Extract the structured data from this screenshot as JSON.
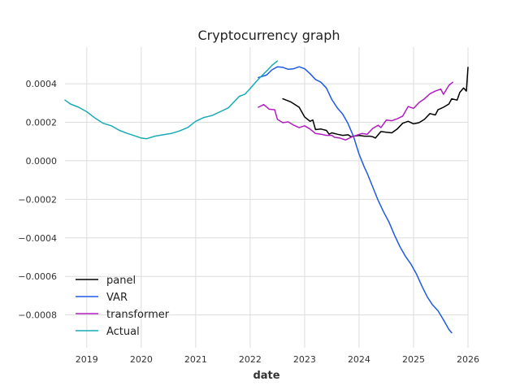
{
  "chart_data": {
    "type": "line",
    "title": "Cryptocurrency graph",
    "xlabel": "date",
    "ylabel": "",
    "x_ticks": [
      "2019",
      "2020",
      "2021",
      "2022",
      "2023",
      "2024",
      "2025",
      "2026"
    ],
    "y_ticks": [
      "−0.0008",
      "−0.0006",
      "−0.0004",
      "−0.0002",
      "0.0000",
      "0.0002",
      "0.0004"
    ],
    "xlim": [
      2018.6,
      2026.0
    ],
    "ylim": [
      -0.00097,
      0.00059
    ],
    "grid": true,
    "legend_position": "lower-left",
    "series": [
      {
        "name": "panel",
        "color": "#000000",
        "points": [
          [
            2022.6,
            0.000322
          ],
          [
            2022.75,
            0.000305
          ],
          [
            2022.9,
            0.000278
          ],
          [
            2023.0,
            0.000228
          ],
          [
            2023.1,
            0.000205
          ],
          [
            2023.15,
            0.000212
          ],
          [
            2023.2,
            0.000162
          ],
          [
            2023.3,
            0.000165
          ],
          [
            2023.4,
            0.000158
          ],
          [
            2023.45,
            0.000138
          ],
          [
            2023.5,
            0.000145
          ],
          [
            2023.6,
            0.000138
          ],
          [
            2023.7,
            0.000132
          ],
          [
            2023.8,
            0.000135
          ],
          [
            2023.85,
            0.000125
          ],
          [
            2023.9,
            0.000128
          ],
          [
            2024.0,
            0.000132
          ],
          [
            2024.1,
            0.000128
          ],
          [
            2024.2,
            0.000128
          ],
          [
            2024.25,
            0.000125
          ],
          [
            2024.3,
            0.000118
          ],
          [
            2024.4,
            0.000152
          ],
          [
            2024.5,
            0.000148
          ],
          [
            2024.6,
            0.000145
          ],
          [
            2024.7,
            0.000165
          ],
          [
            2024.8,
            0.000195
          ],
          [
            2024.9,
            0.000205
          ],
          [
            2025.0,
            0.000192
          ],
          [
            2025.1,
            0.000198
          ],
          [
            2025.2,
            0.000215
          ],
          [
            2025.3,
            0.000245
          ],
          [
            2025.4,
            0.000238
          ],
          [
            2025.45,
            0.000265
          ],
          [
            2025.55,
            0.000278
          ],
          [
            2025.65,
            0.000295
          ],
          [
            2025.7,
            0.000322
          ],
          [
            2025.8,
            0.000315
          ],
          [
            2025.85,
            0.000355
          ],
          [
            2025.92,
            0.000378
          ],
          [
            2025.97,
            0.000362
          ],
          [
            2026.0,
            0.000485
          ]
        ]
      },
      {
        "name": "VAR",
        "color": "#1f5ae6",
        "points": [
          [
            2022.15,
            0.000432
          ],
          [
            2022.3,
            0.000445
          ],
          [
            2022.4,
            0.000472
          ],
          [
            2022.5,
            0.000488
          ],
          [
            2022.6,
            0.000485
          ],
          [
            2022.7,
            0.000475
          ],
          [
            2022.8,
            0.000478
          ],
          [
            2022.9,
            0.000488
          ],
          [
            2023.0,
            0.000478
          ],
          [
            2023.1,
            0.000452
          ],
          [
            2023.2,
            0.000422
          ],
          [
            2023.3,
            0.000408
          ],
          [
            2023.4,
            0.000378
          ],
          [
            2023.5,
            0.000318
          ],
          [
            2023.6,
            0.000275
          ],
          [
            2023.7,
            0.000242
          ],
          [
            2023.8,
            0.000192
          ],
          [
            2023.9,
            0.000125
          ],
          [
            2024.0,
            3.5e-05
          ],
          [
            2024.1,
            -3.5e-05
          ],
          [
            2024.15,
            -6.5e-05
          ],
          [
            2024.25,
            -0.000135
          ],
          [
            2024.35,
            -0.000205
          ],
          [
            2024.45,
            -0.000265
          ],
          [
            2024.55,
            -0.000318
          ],
          [
            2024.65,
            -0.000385
          ],
          [
            2024.75,
            -0.000445
          ],
          [
            2024.85,
            -0.000495
          ],
          [
            2024.95,
            -0.000535
          ],
          [
            2025.05,
            -0.000585
          ],
          [
            2025.15,
            -0.000648
          ],
          [
            2025.25,
            -0.000705
          ],
          [
            2025.35,
            -0.000748
          ],
          [
            2025.45,
            -0.000778
          ],
          [
            2025.55,
            -0.000825
          ],
          [
            2025.65,
            -0.000875
          ],
          [
            2025.7,
            -0.000892
          ]
        ]
      },
      {
        "name": "transformer",
        "color": "#b01dbf",
        "points": [
          [
            2022.15,
            0.000278
          ],
          [
            2022.25,
            0.000292
          ],
          [
            2022.35,
            0.000268
          ],
          [
            2022.45,
            0.000265
          ],
          [
            2022.5,
            0.000215
          ],
          [
            2022.6,
            0.000198
          ],
          [
            2022.7,
            0.000202
          ],
          [
            2022.8,
            0.000185
          ],
          [
            2022.9,
            0.000172
          ],
          [
            2023.0,
            0.000182
          ],
          [
            2023.1,
            0.000165
          ],
          [
            2023.2,
            0.000142
          ],
          [
            2023.3,
            0.000138
          ],
          [
            2023.4,
            0.000132
          ],
          [
            2023.5,
            0.000132
          ],
          [
            2023.55,
            0.000122
          ],
          [
            2023.65,
            0.000118
          ],
          [
            2023.75,
            0.000108
          ],
          [
            2023.85,
            0.000122
          ],
          [
            2023.95,
            0.000132
          ],
          [
            2024.05,
            0.000142
          ],
          [
            2024.15,
            0.000138
          ],
          [
            2024.25,
            0.000168
          ],
          [
            2024.35,
            0.000185
          ],
          [
            2024.4,
            0.000172
          ],
          [
            2024.5,
            0.000212
          ],
          [
            2024.6,
            0.000208
          ],
          [
            2024.7,
            0.000218
          ],
          [
            2024.8,
            0.000232
          ],
          [
            2024.9,
            0.000282
          ],
          [
            2025.0,
            0.000272
          ],
          [
            2025.1,
            0.000302
          ],
          [
            2025.2,
            0.000322
          ],
          [
            2025.3,
            0.000348
          ],
          [
            2025.4,
            0.000362
          ],
          [
            2025.5,
            0.000372
          ],
          [
            2025.55,
            0.000345
          ],
          [
            2025.65,
            0.000392
          ],
          [
            2025.72,
            0.000408
          ]
        ]
      },
      {
        "name": "Actual",
        "color": "#17abb5",
        "points": [
          [
            2018.6,
            0.000315
          ],
          [
            2018.7,
            0.000295
          ],
          [
            2018.85,
            0.000278
          ],
          [
            2019.0,
            0.000255
          ],
          [
            2019.15,
            0.000222
          ],
          [
            2019.3,
            0.000195
          ],
          [
            2019.45,
            0.000182
          ],
          [
            2019.6,
            0.000158
          ],
          [
            2019.75,
            0.000142
          ],
          [
            2019.9,
            0.000128
          ],
          [
            2020.0,
            0.000118
          ],
          [
            2020.1,
            0.000115
          ],
          [
            2020.25,
            0.000128
          ],
          [
            2020.4,
            0.000135
          ],
          [
            2020.55,
            0.000142
          ],
          [
            2020.7,
            0.000155
          ],
          [
            2020.85,
            0.000172
          ],
          [
            2021.0,
            0.000205
          ],
          [
            2021.15,
            0.000225
          ],
          [
            2021.3,
            0.000235
          ],
          [
            2021.45,
            0.000255
          ],
          [
            2021.6,
            0.000275
          ],
          [
            2021.7,
            0.000305
          ],
          [
            2021.8,
            0.000335
          ],
          [
            2021.9,
            0.000345
          ],
          [
            2022.0,
            0.000375
          ],
          [
            2022.1,
            0.000408
          ],
          [
            2022.2,
            0.000438
          ],
          [
            2022.3,
            0.000465
          ],
          [
            2022.4,
            0.000495
          ],
          [
            2022.5,
            0.000518
          ]
        ]
      }
    ]
  }
}
